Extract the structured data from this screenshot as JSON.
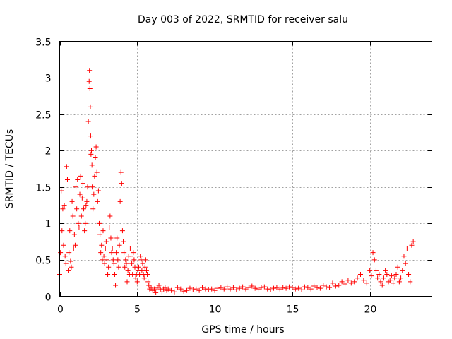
{
  "chart_data": {
    "type": "scatter",
    "title": "Day 003 of 2022, SRMTID for receiver salu",
    "xlabel": "GPS time / hours",
    "ylabel": "SRMTID / TECUs",
    "xlim": [
      0,
      24
    ],
    "ylim": [
      0,
      3.5
    ],
    "xticks": [
      0,
      5,
      10,
      15,
      20
    ],
    "xtick_labels": [
      "0",
      "5",
      "10",
      "15",
      "20"
    ],
    "yticks": [
      0,
      0.5,
      1,
      1.5,
      2,
      2.5,
      3,
      3.5
    ],
    "ytick_labels": [
      "0",
      "0.5",
      "1",
      "1.5",
      "2",
      "2.5",
      "3",
      "3.5"
    ],
    "grid": true,
    "marker": "+",
    "color": "#ff0000",
    "series": [
      {
        "name": "SRMTID",
        "x": [
          0.0,
          0.05,
          0.1,
          0.15,
          0.2,
          0.25,
          0.3,
          0.35,
          0.4,
          0.45,
          0.5,
          0.55,
          0.6,
          0.65,
          0.7,
          0.75,
          0.8,
          0.85,
          0.9,
          0.95,
          1.0,
          1.05,
          1.1,
          1.15,
          1.2,
          1.25,
          1.3,
          1.35,
          1.4,
          1.45,
          1.5,
          1.55,
          1.6,
          1.65,
          1.7,
          1.75,
          1.8,
          1.85,
          1.9,
          1.92,
          1.95,
          1.98,
          2.0,
          2.02,
          2.05,
          2.08,
          2.1,
          2.15,
          2.2,
          2.25,
          2.3,
          2.35,
          2.4,
          2.45,
          2.5,
          2.55,
          2.6,
          2.65,
          2.7,
          2.75,
          2.8,
          2.85,
          2.9,
          2.95,
          3.0,
          3.05,
          3.1,
          3.15,
          3.2,
          3.25,
          3.3,
          3.35,
          3.4,
          3.45,
          3.5,
          3.55,
          3.6,
          3.65,
          3.7,
          3.75,
          3.8,
          3.85,
          3.9,
          3.95,
          4.0,
          4.05,
          4.1,
          4.15,
          4.2,
          4.25,
          4.3,
          4.35,
          4.4,
          4.45,
          4.5,
          4.55,
          4.6,
          4.65,
          4.7,
          4.75,
          4.8,
          4.85,
          4.9,
          4.95,
          5.0,
          5.05,
          5.1,
          5.15,
          5.2,
          5.25,
          5.3,
          5.35,
          5.4,
          5.45,
          5.5,
          5.55,
          5.6,
          5.65,
          5.7,
          5.75,
          5.8,
          5.9,
          6.0,
          6.1,
          6.2,
          6.3,
          6.4,
          6.5,
          6.6,
          6.7,
          6.8,
          6.9,
          7.0,
          7.2,
          7.4,
          7.6,
          7.8,
          8.0,
          8.2,
          8.4,
          8.6,
          8.8,
          9.0,
          9.2,
          9.4,
          9.6,
          9.8,
          10.0,
          10.2,
          10.4,
          10.6,
          10.8,
          11.0,
          11.2,
          11.4,
          11.6,
          11.8,
          12.0,
          12.2,
          12.4,
          12.6,
          12.8,
          13.0,
          13.2,
          13.4,
          13.6,
          13.8,
          14.0,
          14.2,
          14.4,
          14.6,
          14.8,
          15.0,
          15.2,
          15.4,
          15.6,
          15.8,
          16.0,
          16.2,
          16.4,
          16.6,
          16.8,
          17.0,
          17.2,
          17.4,
          17.6,
          17.8,
          18.0,
          18.2,
          18.4,
          18.6,
          18.8,
          19.0,
          19.2,
          19.4,
          19.6,
          19.8,
          20.0,
          20.1,
          20.2,
          20.3,
          20.4,
          20.5,
          20.6,
          20.7,
          20.8,
          20.9,
          21.0,
          21.1,
          21.2,
          21.3,
          21.4,
          21.5,
          21.6,
          21.7,
          21.8,
          21.9,
          22.0,
          22.1,
          22.2,
          22.3,
          22.4,
          22.5,
          22.6,
          22.7,
          22.8
        ],
        "y": [
          0.3,
          0.6,
          1.45,
          0.9,
          1.2,
          0.7,
          1.25,
          0.55,
          0.45,
          1.78,
          1.6,
          0.35,
          0.6,
          0.9,
          0.48,
          0.4,
          1.3,
          1.1,
          0.65,
          0.85,
          0.7,
          1.5,
          1.2,
          1.6,
          1.0,
          0.95,
          1.4,
          1.65,
          1.1,
          1.35,
          1.55,
          1.2,
          0.9,
          1.0,
          1.25,
          1.3,
          1.5,
          2.4,
          2.95,
          3.1,
          2.85,
          2.6,
          2.2,
          1.95,
          2.0,
          1.8,
          1.5,
          1.2,
          1.4,
          1.65,
          1.9,
          2.05,
          1.7,
          1.3,
          1.45,
          1.0,
          0.85,
          0.6,
          0.7,
          0.5,
          0.9,
          0.55,
          0.45,
          0.65,
          0.75,
          0.5,
          0.3,
          0.4,
          0.95,
          1.1,
          0.8,
          0.6,
          0.65,
          0.5,
          0.45,
          0.3,
          0.15,
          0.6,
          0.8,
          0.5,
          0.4,
          0.7,
          1.3,
          1.7,
          1.55,
          0.9,
          0.75,
          0.6,
          0.4,
          0.5,
          0.45,
          0.2,
          0.35,
          0.55,
          0.3,
          0.65,
          0.55,
          0.45,
          0.3,
          0.6,
          0.5,
          0.4,
          0.25,
          0.3,
          0.2,
          0.35,
          0.4,
          0.3,
          0.55,
          0.5,
          0.35,
          0.45,
          0.3,
          0.25,
          0.4,
          0.5,
          0.35,
          0.3,
          0.2,
          0.15,
          0.1,
          0.12,
          0.08,
          0.1,
          0.05,
          0.12,
          0.15,
          0.1,
          0.06,
          0.1,
          0.12,
          0.08,
          0.1,
          0.08,
          0.06,
          0.12,
          0.1,
          0.07,
          0.08,
          0.11,
          0.09,
          0.1,
          0.08,
          0.12,
          0.1,
          0.09,
          0.1,
          0.08,
          0.11,
          0.12,
          0.1,
          0.13,
          0.1,
          0.12,
          0.09,
          0.11,
          0.13,
          0.1,
          0.12,
          0.14,
          0.11,
          0.1,
          0.12,
          0.13,
          0.1,
          0.09,
          0.11,
          0.12,
          0.1,
          0.12,
          0.11,
          0.13,
          0.12,
          0.1,
          0.11,
          0.09,
          0.13,
          0.12,
          0.1,
          0.14,
          0.12,
          0.11,
          0.15,
          0.13,
          0.12,
          0.18,
          0.14,
          0.15,
          0.2,
          0.17,
          0.22,
          0.18,
          0.2,
          0.25,
          0.3,
          0.22,
          0.18,
          0.35,
          0.28,
          0.6,
          0.5,
          0.35,
          0.25,
          0.3,
          0.2,
          0.15,
          0.25,
          0.35,
          0.3,
          0.2,
          0.22,
          0.28,
          0.18,
          0.25,
          0.3,
          0.4,
          0.2,
          0.25,
          0.35,
          0.55,
          0.45,
          0.65,
          0.3,
          0.2,
          0.7,
          0.75
        ]
      }
    ]
  }
}
